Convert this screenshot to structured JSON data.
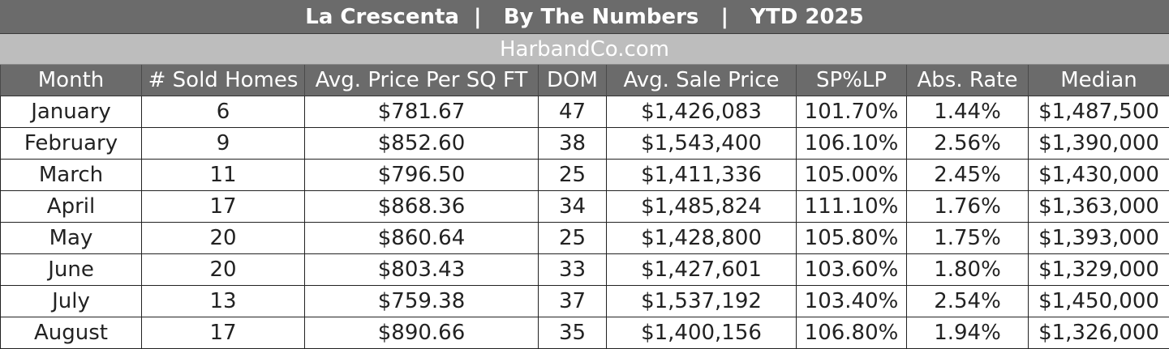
{
  "title": "La Crescenta  |   By The Numbers   |   YTD 2025",
  "website": "HarbandCo.com",
  "table": {
    "headers": [
      "Month",
      "# Sold Homes",
      "Avg. Price Per SQ FT",
      "DOM",
      "Avg. Sale Price",
      "SP%LP",
      "Abs. Rate",
      "Median"
    ],
    "rows": [
      [
        "January",
        "6",
        "$781.67",
        "47",
        "$1,426,083",
        "101.70%",
        "1.44%",
        "$1,487,500"
      ],
      [
        "February",
        "9",
        "$852.60",
        "38",
        "$1,543,400",
        "106.10%",
        "2.56%",
        "$1,390,000"
      ],
      [
        "March",
        "11",
        "$796.50",
        "25",
        "$1,411,336",
        "105.00%",
        "2.45%",
        "$1,430,000"
      ],
      [
        "April",
        "17",
        "$868.36",
        "34",
        "$1,485,824",
        "111.10%",
        "1.76%",
        "$1,363,000"
      ],
      [
        "May",
        "20",
        "$860.64",
        "25",
        "$1,428,800",
        "105.80%",
        "1.75%",
        "$1,393,000"
      ],
      [
        "June",
        "20",
        "$803.43",
        "33",
        "$1,427,601",
        "103.60%",
        "1.80%",
        "$1,329,000"
      ],
      [
        "July",
        "13",
        "$759.38",
        "37",
        "$1,537,192",
        "103.40%",
        "2.54%",
        "$1,450,000"
      ],
      [
        "August",
        "17",
        "$890.66",
        "35",
        "$1,400,156",
        "106.80%",
        "1.94%",
        "$1,326,000"
      ]
    ]
  }
}
